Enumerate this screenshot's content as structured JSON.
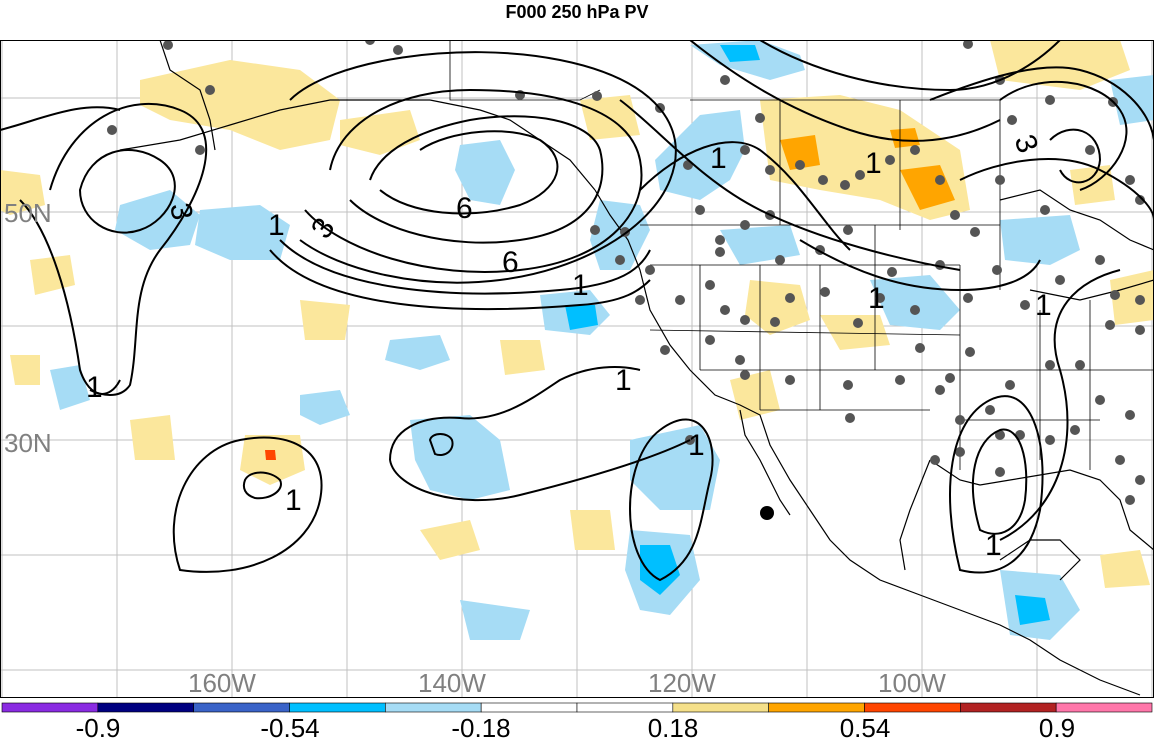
{
  "title": "F000 250 hPa PV",
  "axes": {
    "lon_labels": [
      "160W",
      "140W",
      "120W",
      "100W"
    ],
    "lat_labels": [
      "50N",
      "30N"
    ]
  },
  "contour_labels": [
    "1",
    "3",
    "6",
    "6",
    "1",
    "1",
    "1",
    "1",
    "1",
    "1",
    "1",
    "1",
    "3",
    "3",
    "1"
  ],
  "colorbar": {
    "colors": [
      "#8a2be2",
      "#000080",
      "#3a63c8",
      "#00bfff",
      "#a6dcf5",
      "#ffffff",
      "#ffffff",
      "#f5e08a",
      "#ffa500",
      "#ff4500",
      "#b22222",
      "#ff77aa"
    ],
    "tick_labels": [
      "-0.9",
      "-0.54",
      "-0.18",
      "0.18",
      "0.54",
      "0.9"
    ]
  },
  "colors": {
    "neg_light": "#a6dcf5",
    "neg_mid": "#00bfff",
    "pos_light": "#fbe79c",
    "pos_mid": "#ffa500",
    "pos_high": "#ff4500",
    "station": "#555555",
    "grid": "#c0c0c0"
  }
}
